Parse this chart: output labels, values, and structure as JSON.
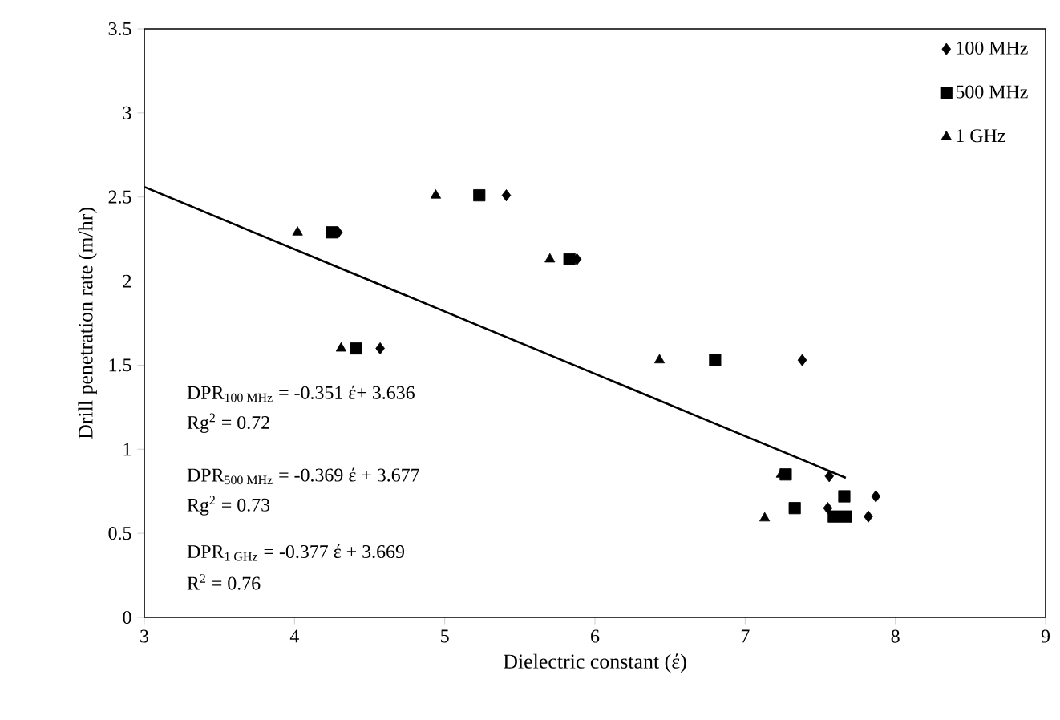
{
  "chart_data": {
    "type": "scatter",
    "xlabel": "Dielectric constant (έ)",
    "ylabel": "Drill penetration rate (m/hr)",
    "xlim": [
      3,
      9
    ],
    "ylim": [
      0,
      3.5
    ],
    "xticks": [
      3,
      4,
      5,
      6,
      7,
      8,
      9
    ],
    "yticks": [
      0,
      0.5,
      1,
      1.5,
      2,
      2.5,
      3,
      3.5
    ],
    "grid": false,
    "legend": "top right",
    "series": [
      {
        "name": "100 MHz",
        "color": "#000000",
        "marker": "diamond",
        "x": [
          4.29,
          5.41,
          5.88,
          4.57,
          7.38,
          7.56,
          7.87,
          7.55,
          7.82
        ],
        "values": [
          2.29,
          2.51,
          2.13,
          1.6,
          1.53,
          0.84,
          0.72,
          0.65,
          0.6
        ]
      },
      {
        "name": "500 MHz",
        "color": "#000000",
        "marker": "square",
        "x": [
          4.25,
          5.23,
          5.83,
          4.41,
          6.8,
          7.27,
          7.66,
          7.33,
          7.59,
          7.67
        ],
        "values": [
          2.29,
          2.51,
          2.13,
          1.6,
          1.53,
          0.85,
          0.72,
          0.65,
          0.6,
          0.6
        ]
      },
      {
        "name": "1 GHz",
        "color": "#000000",
        "marker": "triangle",
        "x": [
          4.02,
          4.94,
          5.7,
          4.31,
          6.43,
          7.13,
          7.24
        ],
        "values": [
          2.29,
          2.51,
          2.13,
          1.6,
          1.53,
          0.59,
          0.85
        ]
      },
      {
        "type": "line",
        "color": "#000000",
        "marker": "none",
        "line_style": "solid",
        "x": [
          3,
          7.67
        ],
        "values": [
          2.56,
          0.83
        ]
      }
    ],
    "annotations": [
      "DPR$_{100 MHz}$ = -0.351 έ+ 3.636",
      "Rg$^{2}$ = 0.72",
      "DPR$_{500 MHz}$ = -0.369 έ  + 3.677",
      "Rg$^{2}$ = 0.73",
      "DPR$_{1 GHz}$ = -0.377 έ + 3.669",
      "R$^{2}$ = 0.76"
    ]
  }
}
